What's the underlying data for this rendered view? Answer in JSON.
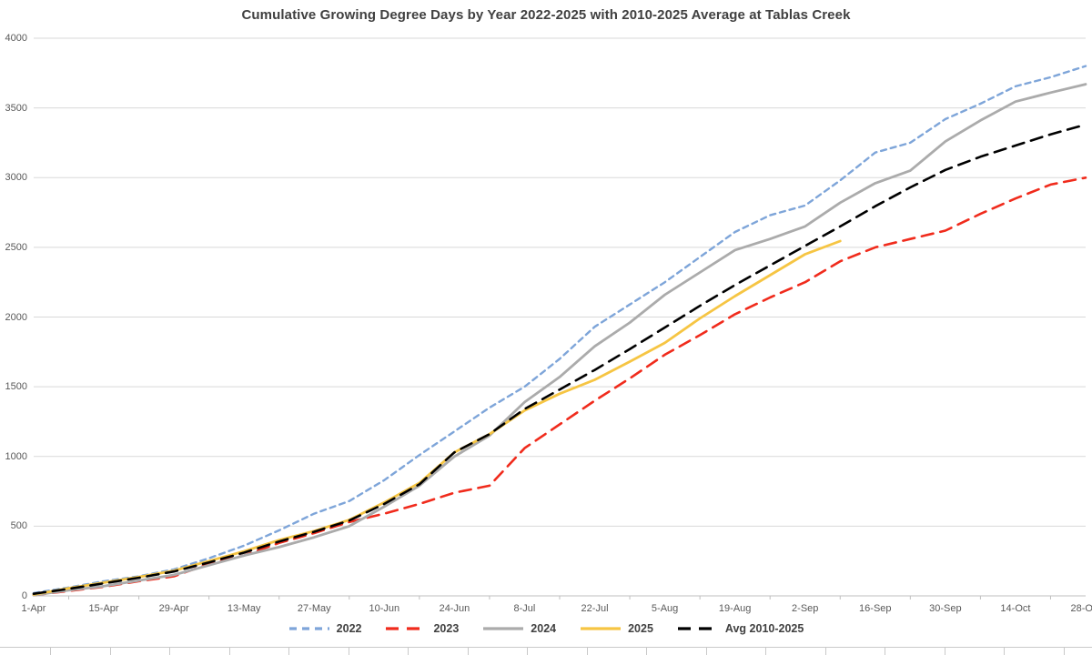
{
  "title": "Cumulative Growing Degree Days by Year 2022-2025 with 2010-2025 Average at Tablas Creek",
  "chart_data": {
    "type": "line",
    "title": "Cumulative Growing Degree Days by Year 2022-2025 with 2010-2025 Average at Tablas Creek",
    "xlabel": "",
    "ylabel": "",
    "ylim": [
      0,
      4000
    ],
    "grid": "horizontal",
    "legend_position": "bottom",
    "y_ticks": [
      0,
      500,
      1000,
      1500,
      2000,
      2500,
      3000,
      3500,
      4000
    ],
    "x_tick_labels": [
      "1-Apr",
      "15-Apr",
      "29-Apr",
      "13-May",
      "27-May",
      "10-Jun",
      "24-Jun",
      "8-Jul",
      "22-Jul",
      "5-Aug",
      "19-Aug",
      "2-Sep",
      "16-Sep",
      "30-Sep",
      "14-Oct",
      "28-Oct"
    ],
    "x_dates_weekly": [
      "1-Apr",
      "8-Apr",
      "15-Apr",
      "22-Apr",
      "29-Apr",
      "6-May",
      "13-May",
      "20-May",
      "27-May",
      "3-Jun",
      "10-Jun",
      "17-Jun",
      "24-Jun",
      "1-Jul",
      "8-Jul",
      "15-Jul",
      "22-Jul",
      "29-Jul",
      "5-Aug",
      "12-Aug",
      "19-Aug",
      "26-Aug",
      "2-Sep",
      "9-Sep",
      "16-Sep",
      "23-Sep",
      "30-Sep",
      "7-Oct",
      "14-Oct",
      "21-Oct",
      "28-Oct"
    ],
    "series": [
      {
        "name": "2022",
        "color": "#7EA5D9",
        "style": "short-dash",
        "width": 2.4,
        "values": [
          20,
          60,
          105,
          140,
          190,
          270,
          360,
          470,
          590,
          680,
          830,
          1010,
          1180,
          1350,
          1500,
          1700,
          1930,
          2090,
          2250,
          2430,
          2610,
          2730,
          2800,
          2980,
          3180,
          3250,
          3420,
          3530,
          3655,
          3720,
          3800
        ]
      },
      {
        "name": "2023",
        "color": "#F02B1C",
        "style": "dash",
        "width": 2.6,
        "values": [
          5,
          35,
          65,
          105,
          140,
          230,
          290,
          380,
          450,
          530,
          590,
          660,
          740,
          790,
          1060,
          1230,
          1400,
          1560,
          1730,
          1870,
          2020,
          2140,
          2250,
          2400,
          2500,
          2560,
          2620,
          2740,
          2850,
          2950,
          3000
        ]
      },
      {
        "name": "2024",
        "color": "#ABABAB",
        "style": "solid",
        "width": 2.8,
        "values": [
          5,
          40,
          70,
          110,
          150,
          220,
          290,
          350,
          420,
          500,
          640,
          790,
          1000,
          1150,
          1390,
          1570,
          1790,
          1960,
          2160,
          2320,
          2480,
          2560,
          2650,
          2820,
          2960,
          3050,
          3260,
          3410,
          3545,
          3610,
          3670
        ]
      },
      {
        "name": "2025",
        "color": "#F6C543",
        "style": "solid",
        "width": 2.8,
        "values": [
          10,
          55,
          95,
          135,
          180,
          250,
          320,
          400,
          465,
          545,
          670,
          810,
          1030,
          1160,
          1330,
          1450,
          1550,
          1680,
          1815,
          1990,
          2150,
          2300,
          2450,
          2545,
          null,
          null,
          null,
          null,
          null,
          null,
          null
        ]
      },
      {
        "name": "Avg 2010-2025",
        "color": "#000000",
        "style": "dash",
        "width": 2.6,
        "values": [
          15,
          50,
          90,
          130,
          175,
          240,
          310,
          390,
          460,
          540,
          660,
          800,
          1030,
          1160,
          1340,
          1480,
          1620,
          1770,
          1925,
          2080,
          2230,
          2370,
          2510,
          2650,
          2795,
          2930,
          3055,
          3150,
          3230,
          3310,
          3380
        ]
      }
    ],
    "colors": {
      "gridline": "#d9d9d9",
      "axis_line": "#bfbfbf",
      "tick": "#bfbfbf",
      "axis_text": "#595959",
      "title_text": "#404040"
    }
  }
}
